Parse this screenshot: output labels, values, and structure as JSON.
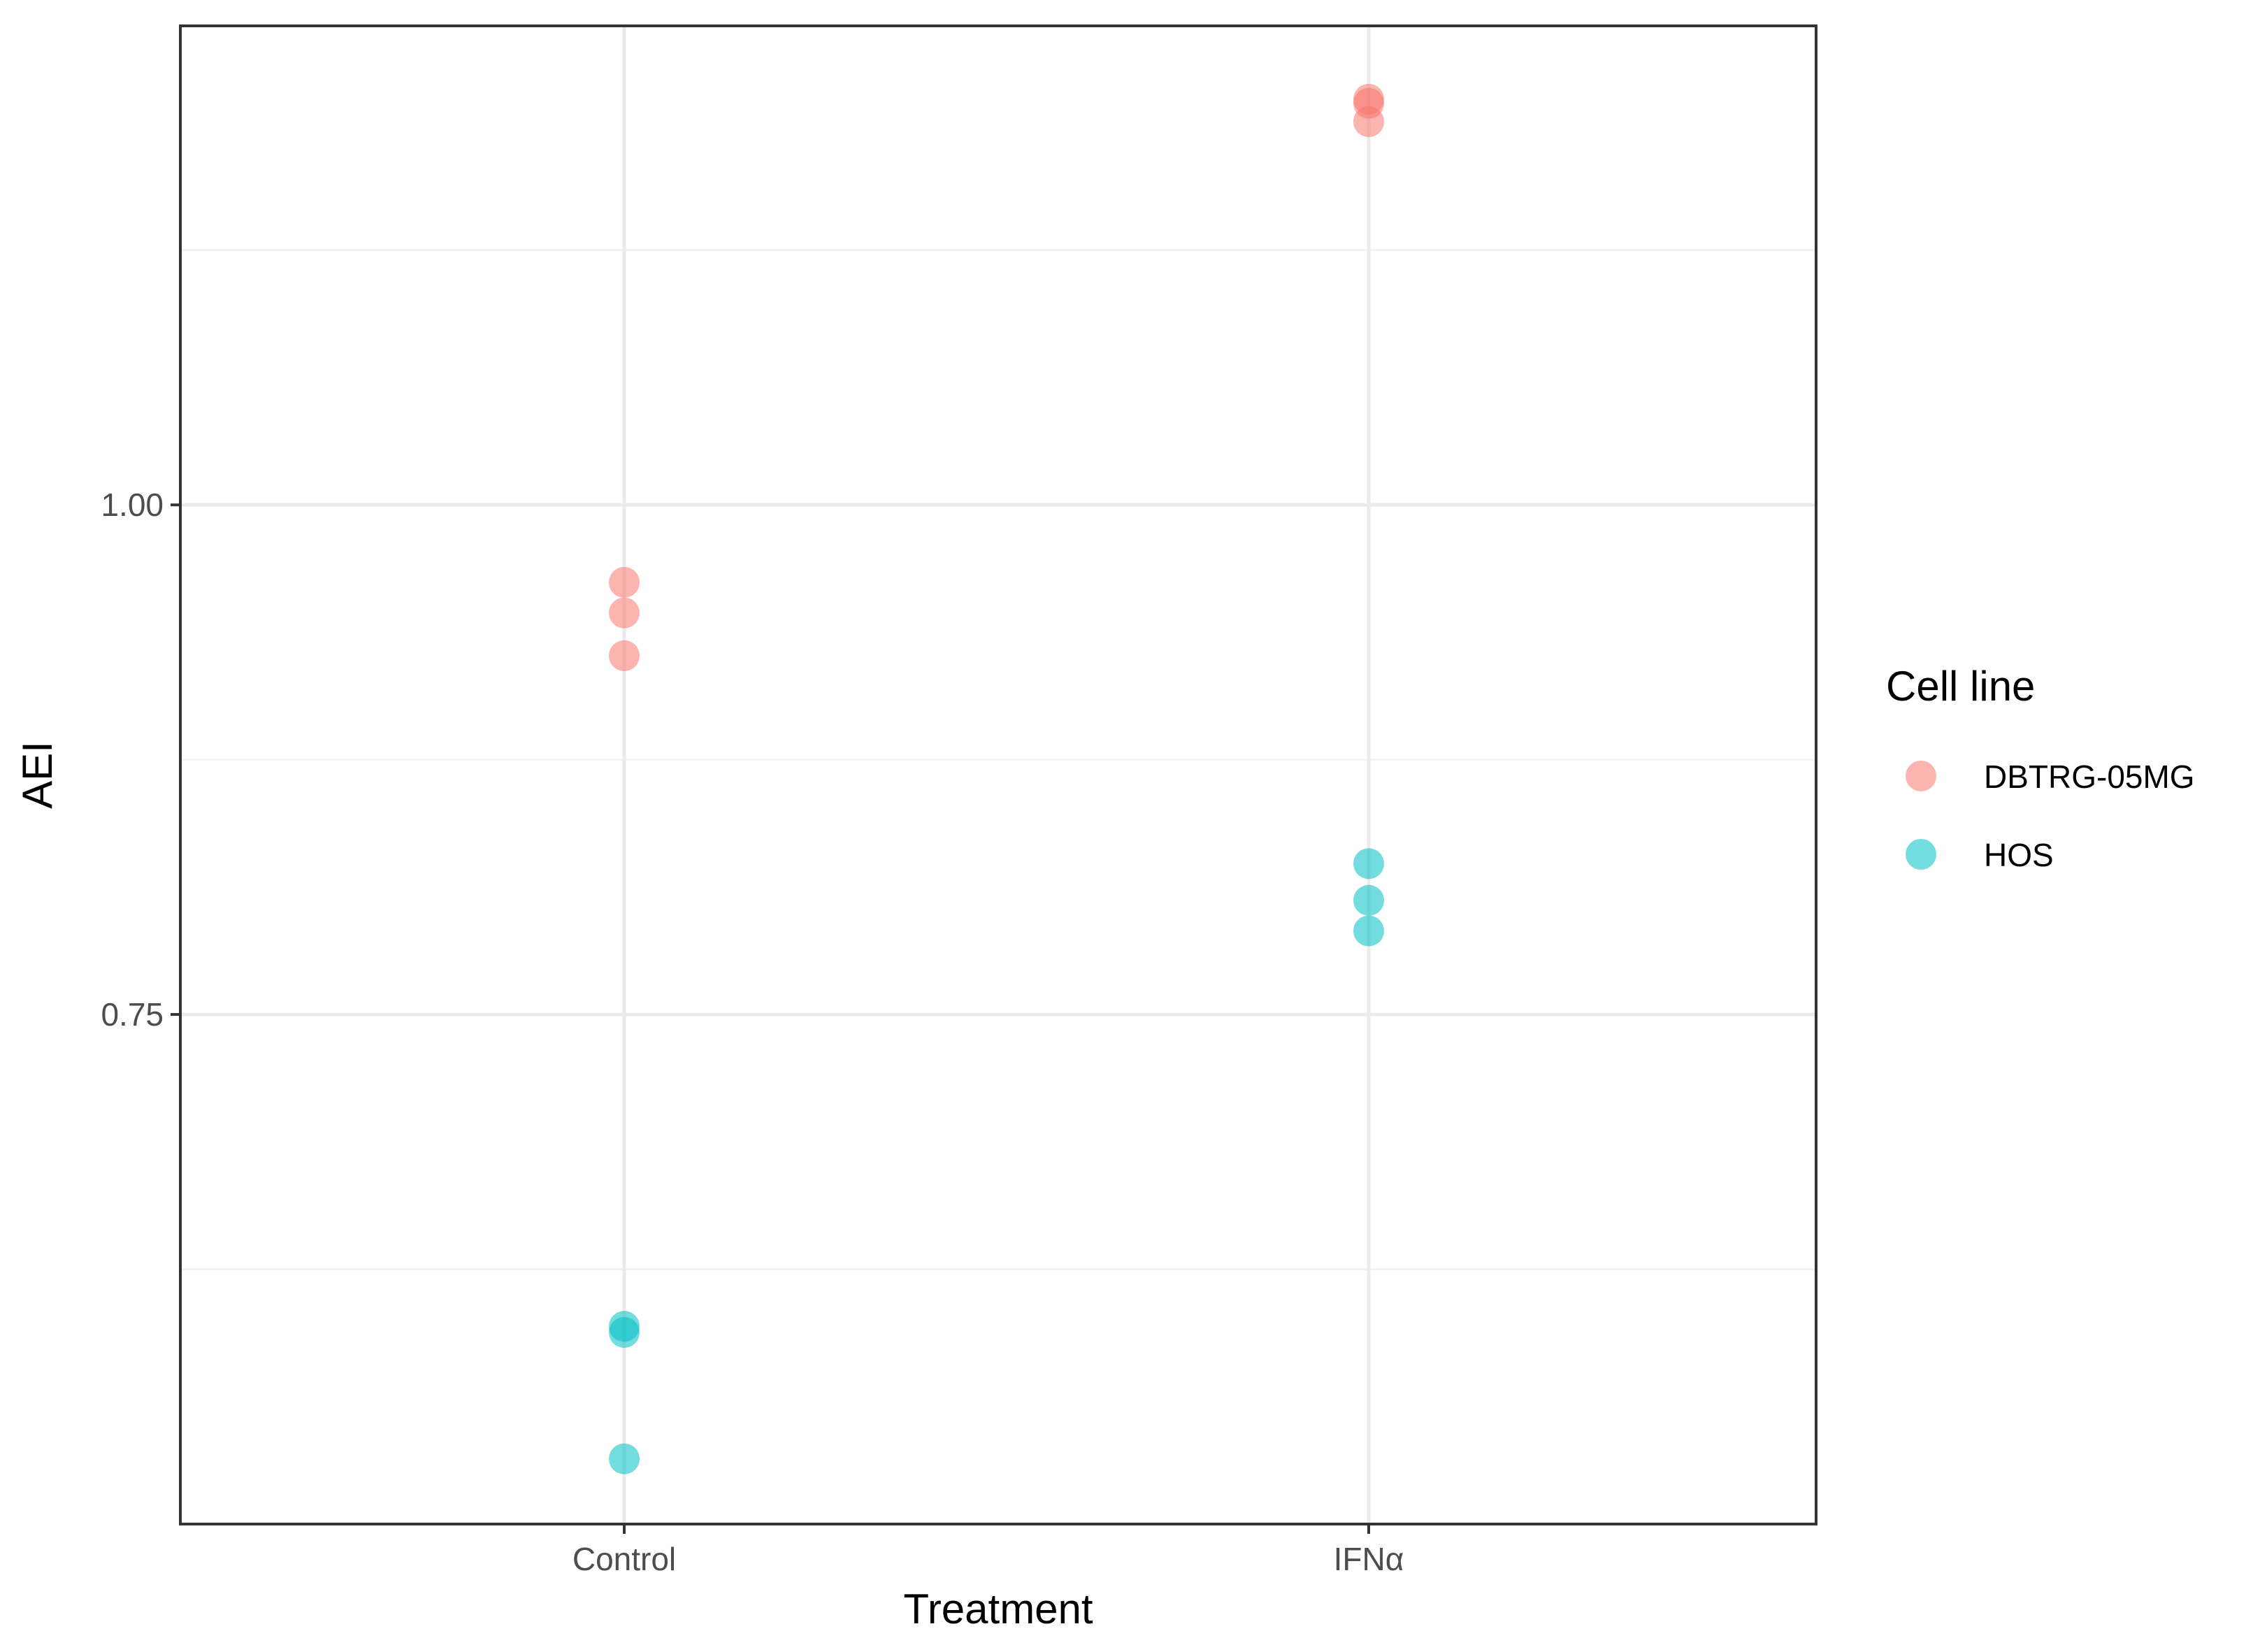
{
  "chart_data": {
    "type": "scatter",
    "title": "",
    "xlabel": "Treatment",
    "ylabel": "AEI",
    "categories": [
      "Control",
      "IFNα"
    ],
    "ylim": [
      0.5,
      1.235
    ],
    "yticks": [
      {
        "value": 0.75,
        "label": "0.75"
      },
      {
        "value": 1.0,
        "label": "1.00"
      }
    ],
    "minor_yticks": [
      0.625,
      0.875,
      1.125
    ],
    "grid": true,
    "legend": {
      "title": "Cell line",
      "position": "right"
    },
    "series": [
      {
        "name": "DBTRG-05MG",
        "color": "#F8766D",
        "points": [
          {
            "category": "Control",
            "y": 0.962
          },
          {
            "category": "Control",
            "y": 0.947
          },
          {
            "category": "Control",
            "y": 0.926
          },
          {
            "category": "IFNα",
            "y": 1.199
          },
          {
            "category": "IFNα",
            "y": 1.197
          },
          {
            "category": "IFNα",
            "y": 1.188
          }
        ]
      },
      {
        "name": "HOS",
        "color": "#00BFC4",
        "points": [
          {
            "category": "Control",
            "y": 0.597
          },
          {
            "category": "Control",
            "y": 0.594
          },
          {
            "category": "Control",
            "y": 0.532
          },
          {
            "category": "IFNα",
            "y": 0.824
          },
          {
            "category": "IFNα",
            "y": 0.806
          },
          {
            "category": "IFNα",
            "y": 0.791
          }
        ]
      }
    ]
  }
}
